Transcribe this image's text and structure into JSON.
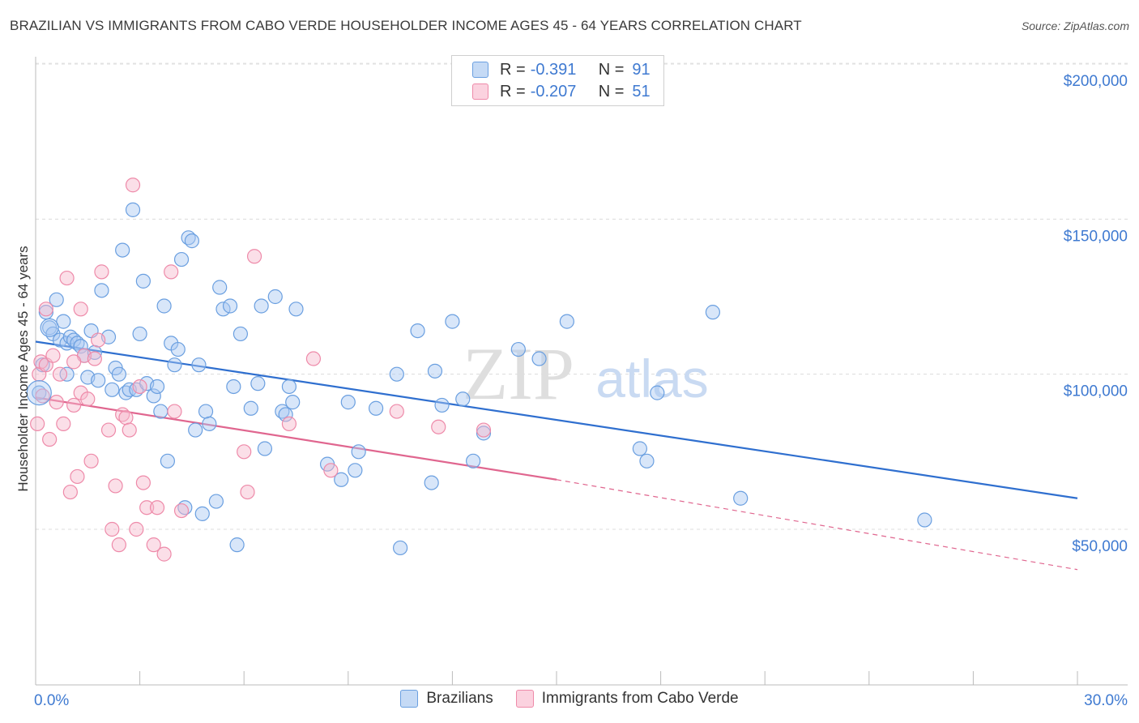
{
  "title": "BRAZILIAN VS IMMIGRANTS FROM CABO VERDE HOUSEHOLDER INCOME AGES 45 - 64 YEARS CORRELATION CHART",
  "source": "Source: ZipAtlas.com",
  "watermark": {
    "zip": "ZIP",
    "atlas": "atlas"
  },
  "legend": {
    "rows": [
      {
        "r_label": "R =",
        "r_value": "-0.391",
        "n_label": "N =",
        "n_value": "91",
        "color": "#a9c8f2"
      },
      {
        "r_label": "R =",
        "r_value": "-0.207",
        "n_label": "N =",
        "n_value": "51",
        "color": "#f7b9cc"
      }
    ]
  },
  "bottom_legend": {
    "s1": "Brazilians",
    "s2": "Immigrants from Cabo Verde"
  },
  "chart_data": {
    "type": "scatter",
    "title": "BRAZILIAN VS IMMIGRANTS FROM CABO VERDE HOUSEHOLDER INCOME AGES 45 - 64 YEARS CORRELATION CHART",
    "xlabel": "",
    "ylabel": "Householder Income Ages 45 - 64 years",
    "xlim": [
      0,
      30
    ],
    "ylim": [
      0,
      210000
    ],
    "x_tick_labels": [
      "0.0%",
      "30.0%"
    ],
    "y_ticks": [
      50000,
      100000,
      150000,
      200000
    ],
    "y_tick_labels": [
      "$50,000",
      "$100,000",
      "$150,000",
      "$200,000"
    ],
    "grid": "horizontal dashed",
    "legend_position": "top-center",
    "series": [
      {
        "name": "Brazilians",
        "color": "#6a9fe0",
        "fill": "#a9c8f2",
        "trend": {
          "x": [
            0,
            30
          ],
          "y": [
            110500,
            60000
          ],
          "style": "solid",
          "color": "#2f6fcf"
        },
        "points": [
          [
            0.1,
            94000
          ],
          [
            0.2,
            103000
          ],
          [
            0.4,
            115000
          ],
          [
            0.5,
            113000
          ],
          [
            0.6,
            124000
          ],
          [
            0.7,
            111000
          ],
          [
            0.8,
            117000
          ],
          [
            0.9,
            110000
          ],
          [
            1.0,
            112000
          ],
          [
            1.1,
            111000
          ],
          [
            1.2,
            110000
          ],
          [
            1.3,
            109000
          ],
          [
            1.4,
            106000
          ],
          [
            1.5,
            99000
          ],
          [
            1.6,
            114000
          ],
          [
            1.7,
            107000
          ],
          [
            1.9,
            127000
          ],
          [
            2.1,
            112000
          ],
          [
            2.2,
            95000
          ],
          [
            2.3,
            102000
          ],
          [
            2.4,
            100000
          ],
          [
            2.5,
            140000
          ],
          [
            2.6,
            94000
          ],
          [
            2.7,
            95000
          ],
          [
            2.8,
            153000
          ],
          [
            2.9,
            95000
          ],
          [
            3.0,
            113000
          ],
          [
            3.1,
            130000
          ],
          [
            3.2,
            97000
          ],
          [
            3.4,
            93000
          ],
          [
            3.6,
            88000
          ],
          [
            3.7,
            122000
          ],
          [
            3.8,
            72000
          ],
          [
            3.9,
            110000
          ],
          [
            4.0,
            103000
          ],
          [
            4.1,
            108000
          ],
          [
            4.2,
            137000
          ],
          [
            4.3,
            57000
          ],
          [
            4.4,
            144000
          ],
          [
            4.5,
            143000
          ],
          [
            4.6,
            82000
          ],
          [
            4.7,
            103000
          ],
          [
            4.9,
            88000
          ],
          [
            5.0,
            84000
          ],
          [
            5.2,
            59000
          ],
          [
            5.3,
            128000
          ],
          [
            5.4,
            121000
          ],
          [
            5.6,
            122000
          ],
          [
            5.7,
            96000
          ],
          [
            5.8,
            45000
          ],
          [
            5.9,
            113000
          ],
          [
            6.2,
            89000
          ],
          [
            6.4,
            97000
          ],
          [
            6.5,
            122000
          ],
          [
            6.6,
            76000
          ],
          [
            6.9,
            125000
          ],
          [
            7.1,
            88000
          ],
          [
            7.2,
            87000
          ],
          [
            7.3,
            96000
          ],
          [
            7.4,
            91000
          ],
          [
            7.5,
            121000
          ],
          [
            8.4,
            71000
          ],
          [
            8.8,
            66000
          ],
          [
            9.2,
            69000
          ],
          [
            9.3,
            75000
          ],
          [
            9.0,
            91000
          ],
          [
            9.8,
            89000
          ],
          [
            10.5,
            44000
          ],
          [
            10.4,
            100000
          ],
          [
            11.0,
            114000
          ],
          [
            11.4,
            65000
          ],
          [
            11.5,
            101000
          ],
          [
            11.7,
            90000
          ],
          [
            12.0,
            117000
          ],
          [
            12.3,
            92000
          ],
          [
            12.6,
            72000
          ],
          [
            12.9,
            81000
          ],
          [
            13.9,
            108000
          ],
          [
            14.5,
            105000
          ],
          [
            15.3,
            117000
          ],
          [
            17.4,
            76000
          ],
          [
            17.6,
            72000
          ],
          [
            17.9,
            94000
          ],
          [
            19.5,
            120000
          ],
          [
            20.3,
            60000
          ],
          [
            25.6,
            53000
          ],
          [
            3.5,
            96000
          ],
          [
            4.8,
            55000
          ],
          [
            0.3,
            120000
          ],
          [
            1.8,
            98000
          ],
          [
            0.9,
            100000
          ]
        ]
      },
      {
        "name": "Immigrants from Cabo Verde",
        "color": "#ee8aa9",
        "fill": "#f7b9cc",
        "trend": {
          "x": [
            0,
            15
          ],
          "y": [
            92500,
            66000
          ],
          "style": "solid",
          "color": "#e0668f",
          "dashed_extension": {
            "x": [
              15,
              30
            ],
            "y": [
              66000,
              37000
            ]
          }
        },
        "points": [
          [
            0.05,
            84000
          ],
          [
            0.1,
            100000
          ],
          [
            0.15,
            104000
          ],
          [
            0.2,
            93000
          ],
          [
            0.3,
            103000
          ],
          [
            0.4,
            79000
          ],
          [
            0.5,
            106000
          ],
          [
            0.6,
            91000
          ],
          [
            0.7,
            100000
          ],
          [
            0.8,
            84000
          ],
          [
            0.9,
            131000
          ],
          [
            1.0,
            62000
          ],
          [
            1.1,
            90000
          ],
          [
            1.2,
            67000
          ],
          [
            1.3,
            94000
          ],
          [
            1.4,
            106000
          ],
          [
            1.5,
            92000
          ],
          [
            1.6,
            72000
          ],
          [
            1.7,
            105000
          ],
          [
            1.9,
            133000
          ],
          [
            2.1,
            82000
          ],
          [
            2.2,
            50000
          ],
          [
            2.3,
            64000
          ],
          [
            2.5,
            87000
          ],
          [
            2.6,
            86000
          ],
          [
            2.7,
            82000
          ],
          [
            2.8,
            161000
          ],
          [
            2.9,
            50000
          ],
          [
            3.0,
            96000
          ],
          [
            3.1,
            65000
          ],
          [
            3.2,
            57000
          ],
          [
            3.4,
            45000
          ],
          [
            3.5,
            57000
          ],
          [
            3.7,
            42000
          ],
          [
            3.9,
            133000
          ],
          [
            4.0,
            88000
          ],
          [
            4.2,
            56000
          ],
          [
            1.8,
            111000
          ],
          [
            0.3,
            121000
          ],
          [
            1.3,
            121000
          ],
          [
            6.0,
            75000
          ],
          [
            6.1,
            62000
          ],
          [
            6.3,
            138000
          ],
          [
            7.3,
            84000
          ],
          [
            8.0,
            105000
          ],
          [
            10.4,
            88000
          ],
          [
            11.6,
            83000
          ],
          [
            12.9,
            82000
          ],
          [
            2.4,
            45000
          ],
          [
            1.1,
            104000
          ],
          [
            8.5,
            69000
          ]
        ]
      }
    ]
  }
}
